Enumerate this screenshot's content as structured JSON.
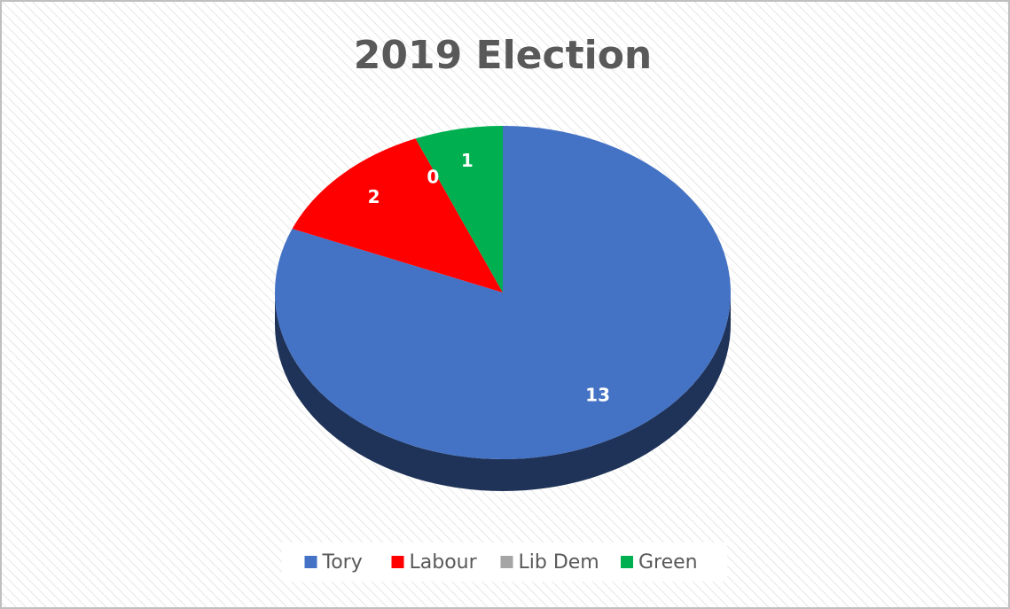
{
  "chart_data": {
    "type": "pie",
    "title": "2019 Election",
    "categories": [
      "Tory",
      "Labour",
      "Lib Dem",
      "Green"
    ],
    "values": [
      13,
      2,
      0,
      1
    ],
    "colors": [
      "#4472c4",
      "#ff0000",
      "#a5a5a5",
      "#00b050"
    ],
    "legend": "bottom"
  }
}
